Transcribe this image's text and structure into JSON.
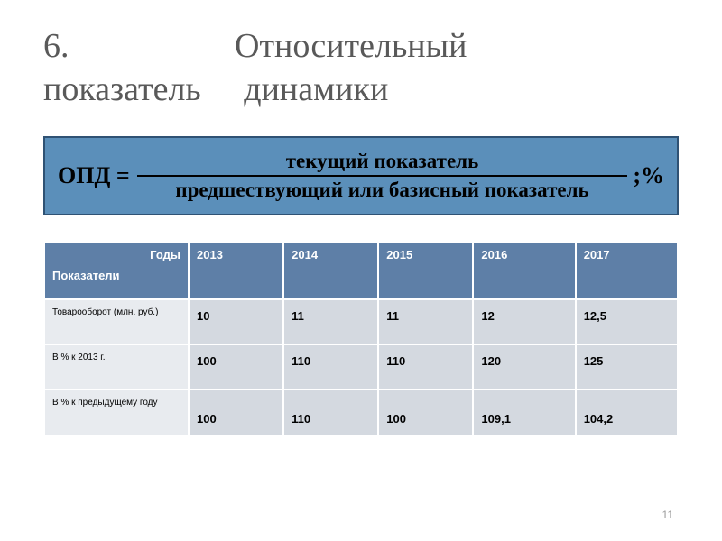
{
  "title": {
    "number": "6.",
    "word1": "Относительный",
    "word2": "показатель",
    "word3": "динамики"
  },
  "formula": {
    "lhs": "ОПД =",
    "numerator": "текущий показатель",
    "denominator": "предшествующий или базисный показатель",
    "rhs": ";%",
    "box_bg": "#5b8fba",
    "box_border": "#2f5274"
  },
  "table": {
    "header_bg": "#5e7fa7",
    "label_bg": "#e8ebef",
    "cell_bg": "#d4d9e0",
    "corner": {
      "years": "Годы",
      "indicators": "Показатели"
    },
    "year_cols": [
      "2013",
      "2014",
      "2015",
      "2016",
      "2017"
    ],
    "rows": [
      {
        "label": "Товарооборот (млн. руб.)",
        "cells": [
          "10",
          "11",
          "11",
          "12",
          "12,5"
        ]
      },
      {
        "label": "В % к 2013 г.",
        "cells": [
          "100",
          "110",
          "110",
          "120",
          "125"
        ]
      },
      {
        "label": "В % к предыдущему году",
        "cells": [
          "100",
          "110",
          "100",
          "109,1",
          "104,2"
        ]
      }
    ]
  },
  "page_number": "11"
}
